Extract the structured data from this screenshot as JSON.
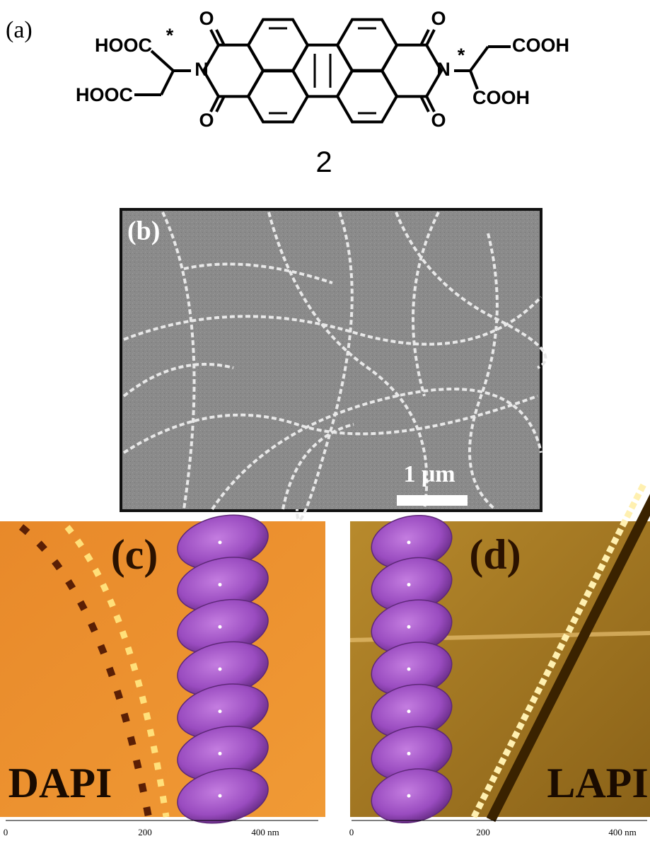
{
  "panel_a": {
    "label": "(a)",
    "compound_number": "2",
    "groups": [
      "HOOC",
      "HOOC",
      "COOH",
      "COOH"
    ],
    "oxygens": [
      "O",
      "O",
      "O",
      "O"
    ],
    "nitrogens": [
      "N",
      "N"
    ],
    "stereocenters": [
      "*",
      "*"
    ]
  },
  "panel_b": {
    "label": "(b)",
    "scale_bar": "1 μm"
  },
  "panel_c": {
    "label": "(c)",
    "caption": "DAPI",
    "axis_ticks": [
      "0",
      "200",
      "400 nm"
    ]
  },
  "panel_d": {
    "label": "(d)",
    "caption": "LAPI",
    "axis_ticks": [
      "0",
      "200",
      "400 nm"
    ]
  }
}
